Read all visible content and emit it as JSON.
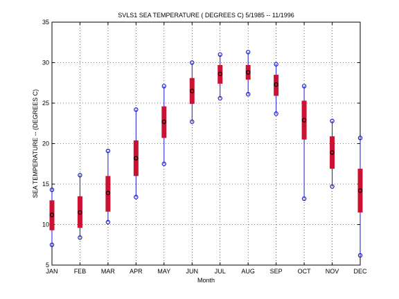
{
  "chart_data": {
    "type": "boxplot",
    "title": "SVLS1  SEA TEMPERATURE ( DEGREES C) 5/1985 -- 11/1996",
    "xlabel": "Month",
    "ylabel": "SEA TEMPERATURE -- (DEGREES C)",
    "ylim": [
      5,
      35
    ],
    "yticks": [
      5,
      10,
      15,
      20,
      25,
      30,
      35
    ],
    "grid": true,
    "categories": [
      "JAN",
      "FEB",
      "MAR",
      "APR",
      "MAY",
      "JUN",
      "JUL",
      "AUG",
      "SEP",
      "OCT",
      "NOV",
      "DEC"
    ],
    "min": [
      7.5,
      8.4,
      10.3,
      13.4,
      17.5,
      22.7,
      25.6,
      26.1,
      23.7,
      13.2,
      14.7,
      6.2
    ],
    "q1": [
      9.3,
      9.6,
      11.6,
      16.0,
      20.7,
      24.9,
      27.4,
      27.9,
      25.9,
      20.5,
      16.9,
      11.5
    ],
    "median": [
      11.2,
      11.5,
      13.9,
      18.2,
      22.7,
      26.5,
      28.6,
      28.8,
      27.3,
      22.9,
      18.9,
      14.2
    ],
    "q3": [
      13.0,
      13.5,
      16.0,
      20.4,
      24.6,
      28.1,
      29.7,
      29.7,
      28.5,
      25.3,
      20.9,
      16.9
    ],
    "max": [
      14.3,
      16.1,
      19.1,
      24.2,
      27.1,
      30.0,
      31.0,
      31.3,
      29.8,
      27.1,
      22.8,
      20.7
    ],
    "colors": {
      "box": "#cc1133",
      "whisker": "#1a1ad0",
      "marker": "#1a1ad0",
      "median_marker": "#000000",
      "axes": "#000000"
    }
  }
}
